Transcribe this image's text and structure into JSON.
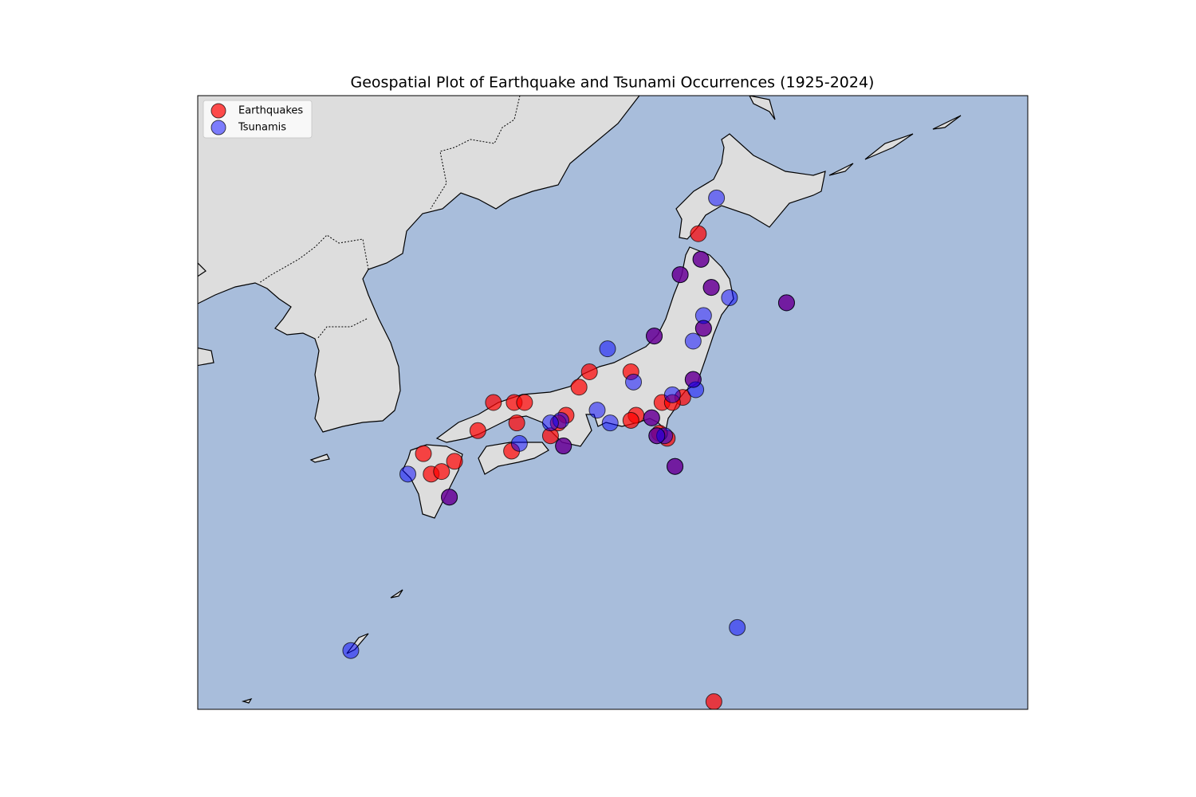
{
  "chart_data": {
    "type": "scatter",
    "title": "Geospatial Plot of Earthquake and Tsunami Occurrences (1925-2024)",
    "xlim": [
      122,
      154
    ],
    "ylim": [
      23,
      47
    ],
    "legend": "upper left",
    "series": [
      {
        "name": "Earthquakes",
        "color": "#ff0000",
        "x": [
          141.3,
          137.1,
          136.7,
          138.7,
          133.4,
          134.2,
          134.6,
          136.2,
          134.3,
          132.8,
          135.6,
          135.9,
          130.7,
          131.9,
          131.0,
          131.4,
          134.1,
          138.9,
          138.7,
          139.9,
          140.7,
          140.1,
          139.8,
          141.9,
          140.3,
          141.4,
          140.6,
          141.8,
          139.6,
          141.5,
          141.1,
          144.7,
          139.5,
          136.1,
          131.7,
          140.4,
          139.7
        ],
        "y": [
          41.6,
          36.2,
          35.6,
          36.2,
          35.0,
          35.0,
          35.0,
          34.5,
          34.2,
          33.9,
          33.7,
          34.2,
          33.0,
          32.7,
          32.2,
          32.3,
          33.1,
          34.5,
          34.3,
          35.0,
          35.2,
          33.6,
          33.8,
          23.3,
          35.0,
          40.6,
          40.0,
          39.5,
          37.6,
          37.9,
          35.9,
          38.9,
          34.4,
          33.3,
          31.3,
          32.5,
          33.7
        ]
      },
      {
        "name": "Tsunamis",
        "color": "#0000ff",
        "x": [
          142.0,
          142.5,
          141.5,
          141.1,
          137.8,
          138.8,
          141.2,
          140.3,
          137.4,
          137.9,
          136.0,
          135.6,
          134.4,
          130.1,
          140.0,
          142.8,
          127.9,
          141.4,
          140.6,
          141.8,
          139.6,
          141.5,
          141.1,
          144.7,
          139.5,
          136.1,
          131.7,
          140.4,
          139.7
        ],
        "y": [
          43.0,
          39.1,
          38.4,
          37.4,
          37.1,
          35.8,
          35.5,
          35.3,
          34.7,
          34.2,
          34.3,
          34.2,
          33.4,
          32.2,
          33.7,
          26.2,
          25.3,
          40.6,
          40.0,
          39.5,
          37.6,
          37.9,
          35.9,
          38.9,
          34.4,
          33.3,
          31.3,
          32.5,
          33.7
        ]
      }
    ]
  }
}
